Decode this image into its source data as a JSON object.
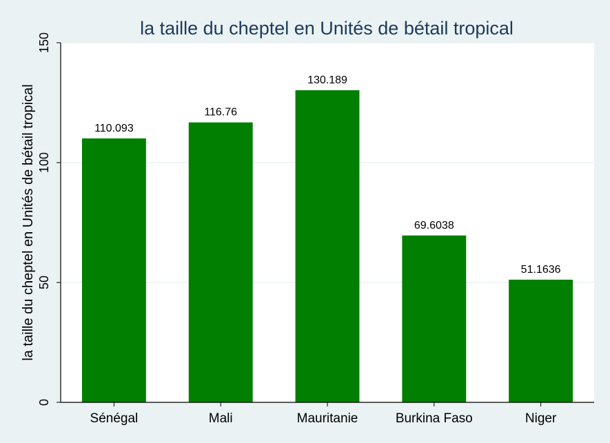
{
  "colors": {
    "background": "#eaf2f3",
    "plot_background": "#ffffff",
    "bar": "#007f00",
    "grid": "#eaf2f3",
    "title": "#1e3a5a",
    "axis": "#000000"
  },
  "chart_data": {
    "type": "bar",
    "title": "la taille du cheptel en Unités de bétail tropical",
    "xlabel": "",
    "ylabel": "la taille du cheptel en Unités de bétail tropical",
    "categories": [
      "Sénégal",
      "Mali",
      "Mauritanie",
      "Burkina Faso",
      "Niger"
    ],
    "values": [
      110.093,
      116.76,
      130.189,
      69.6038,
      51.1636
    ],
    "value_labels": [
      "110.093",
      "116.76",
      "130.189",
      "69.6038",
      "51.1636"
    ],
    "ylim": [
      0,
      150
    ],
    "yticks": [
      0,
      50,
      100,
      150
    ],
    "ytick_labels": [
      "0",
      "50",
      "100",
      "150"
    ],
    "grid": true,
    "legend": "none"
  }
}
